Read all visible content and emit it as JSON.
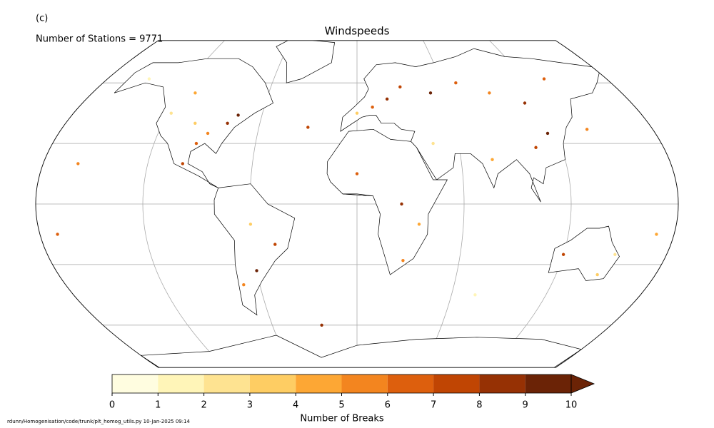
{
  "panel_label": "(c)",
  "station_count_text": "Number of Stations = 9771",
  "title": "Windspeeds",
  "footer": "rdunn/Homogenisation/code/trunk/plt_homog_utils.py   10-Jan-2025 09:14",
  "colorbar": {
    "label": "Number of Breaks",
    "ticks": [
      0,
      1,
      2,
      3,
      4,
      5,
      6,
      7,
      8,
      9,
      10
    ],
    "colors": [
      "#fffde0",
      "#fff5b8",
      "#fee391",
      "#fecd63",
      "#fda734",
      "#f3851f",
      "#dd5f0d",
      "#c04503",
      "#963104",
      "#6b2306"
    ],
    "extend_color": "#6b2306"
  },
  "stations": [
    {
      "lon": -100,
      "lat": 40,
      "breaks": 3
    },
    {
      "lon": -90,
      "lat": 35,
      "breaks": 5
    },
    {
      "lon": -80,
      "lat": 40,
      "breaks": 8
    },
    {
      "lon": -118,
      "lat": 45,
      "breaks": 2
    },
    {
      "lon": -95,
      "lat": 30,
      "breaks": 6
    },
    {
      "lon": -75,
      "lat": 44,
      "breaks": 9
    },
    {
      "lon": -110,
      "lat": 55,
      "breaks": 4
    },
    {
      "lon": -100,
      "lat": 20,
      "breaks": 7
    },
    {
      "lon": -150,
      "lat": 62,
      "breaks": 1
    },
    {
      "lon": -60,
      "lat": -10,
      "breaks": 3
    },
    {
      "lon": -47,
      "lat": -20,
      "breaks": 7
    },
    {
      "lon": -60,
      "lat": -33,
      "breaks": 9
    },
    {
      "lon": -70,
      "lat": -40,
      "breaks": 5
    },
    {
      "lon": 10,
      "lat": 48,
      "breaks": 6
    },
    {
      "lon": 20,
      "lat": 52,
      "breaks": 8
    },
    {
      "lon": 0,
      "lat": 45,
      "breaks": 3
    },
    {
      "lon": 30,
      "lat": 58,
      "breaks": 7
    },
    {
      "lon": 50,
      "lat": 55,
      "breaks": 9
    },
    {
      "lon": 70,
      "lat": 60,
      "breaks": 6
    },
    {
      "lon": 90,
      "lat": 55,
      "breaks": 5
    },
    {
      "lon": 110,
      "lat": 50,
      "breaks": 8
    },
    {
      "lon": 115,
      "lat": 35,
      "breaks": 9
    },
    {
      "lon": 105,
      "lat": 28,
      "breaks": 7
    },
    {
      "lon": 78,
      "lat": 22,
      "breaks": 4
    },
    {
      "lon": 135,
      "lat": 62,
      "breaks": 6
    },
    {
      "lon": 140,
      "lat": 37,
      "breaks": 5
    },
    {
      "lon": 45,
      "lat": 30,
      "breaks": 2
    },
    {
      "lon": 0,
      "lat": 15,
      "breaks": 6
    },
    {
      "lon": 25,
      "lat": 0,
      "breaks": 8
    },
    {
      "lon": 35,
      "lat": -10,
      "breaks": 4
    },
    {
      "lon": 27,
      "lat": -28,
      "breaks": 5
    },
    {
      "lon": 145,
      "lat": -35,
      "breaks": 3
    },
    {
      "lon": 120,
      "lat": -25,
      "breaks": 7
    },
    {
      "lon": 150,
      "lat": -25,
      "breaks": 2
    },
    {
      "lon": -160,
      "lat": 20,
      "breaks": 5
    },
    {
      "lon": -170,
      "lat": -15,
      "breaks": 6
    },
    {
      "lon": 170,
      "lat": -15,
      "breaks": 4
    },
    {
      "lon": -30,
      "lat": 38,
      "breaks": 7
    },
    {
      "lon": 75,
      "lat": -45,
      "breaks": 1
    },
    {
      "lon": -25,
      "lat": -60,
      "breaks": 8
    }
  ]
}
